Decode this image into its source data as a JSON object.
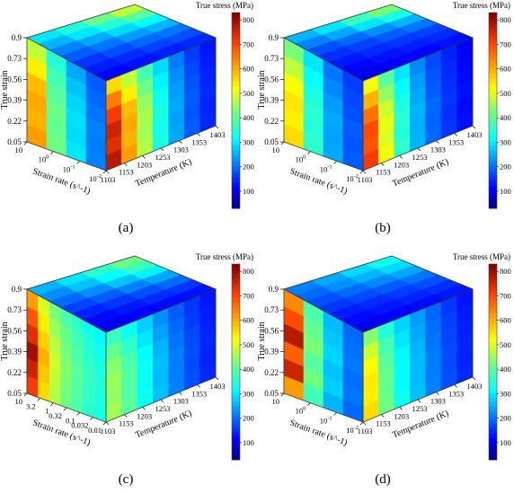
{
  "chart_data": [
    {
      "type": "heatmap",
      "panel_label": "(a)",
      "ylabel": "True strain",
      "y_ticks": [
        "0.05",
        "0.22",
        "0.39",
        "0.56",
        "0.73",
        "0.9"
      ],
      "xlabel": "Strain rate (s^-1)",
      "x_ticks": [
        {
          "base": "10",
          "exp": ""
        },
        {
          "base": "10",
          "exp": "0"
        },
        {
          "base": "10",
          "exp": "-1"
        },
        {
          "base": "10",
          "exp": "-2"
        }
      ],
      "tlabel": "Temperature (K)",
      "t_ticks": [
        "1103",
        "1153",
        "1203",
        "1253",
        "1303",
        "1353",
        "1403"
      ],
      "colorbar_label": "True stress (MPa)",
      "colorbar_ticks": [
        100,
        200,
        300,
        400,
        500,
        600,
        700,
        800
      ],
      "colorbar_range": [
        30,
        830
      ],
      "front_face_stress": [
        [
          780,
          620,
          470,
          340,
          250,
          190,
          150
        ],
        [
          740,
          600,
          460,
          335,
          245,
          185,
          145
        ],
        [
          760,
          610,
          465,
          340,
          250,
          190,
          150
        ],
        [
          720,
          590,
          450,
          330,
          240,
          185,
          145
        ],
        [
          650,
          540,
          420,
          310,
          230,
          175,
          140
        ],
        [
          560,
          480,
          380,
          290,
          215,
          165,
          135
        ]
      ],
      "left_face_stress": [
        [
          620,
          420,
          300,
          220
        ],
        [
          600,
          410,
          290,
          215
        ],
        [
          610,
          415,
          295,
          220
        ],
        [
          590,
          400,
          285,
          210
        ],
        [
          540,
          380,
          270,
          200
        ],
        [
          480,
          350,
          250,
          190
        ]
      ],
      "top_face_stress": [
        [
          480,
          400,
          320,
          260,
          210,
          180,
          150
        ],
        [
          420,
          350,
          290,
          240,
          200,
          170,
          140
        ],
        [
          350,
          300,
          250,
          210,
          180,
          150,
          130
        ],
        [
          300,
          260,
          220,
          190,
          160,
          140,
          120
        ]
      ]
    },
    {
      "type": "heatmap",
      "panel_label": "(b)",
      "ylabel": "True strain",
      "y_ticks": [
        "0.05",
        "0.22",
        "0.39",
        "0.56",
        "0.73",
        "0.9"
      ],
      "xlabel": "Strain rate (s^-1)",
      "x_ticks": [
        {
          "base": "10",
          "exp": ""
        },
        {
          "base": "10",
          "exp": "0"
        },
        {
          "base": "10",
          "exp": "-1"
        },
        {
          "base": "10",
          "exp": "-2"
        }
      ],
      "tlabel": "Temperature (K)",
      "t_ticks": [
        "1103",
        "1153",
        "1203",
        "1253",
        "1303",
        "1353",
        "1403"
      ],
      "colorbar_label": "True stress (MPa)",
      "colorbar_ticks": [
        100,
        200,
        300,
        400,
        500,
        600,
        700,
        800
      ],
      "colorbar_range": [
        30,
        830
      ],
      "front_face_stress": [
        [
          720,
          520,
          360,
          260,
          200,
          160,
          130
        ],
        [
          690,
          500,
          350,
          255,
          195,
          155,
          125
        ],
        [
          700,
          510,
          355,
          260,
          200,
          160,
          130
        ],
        [
          660,
          490,
          340,
          250,
          190,
          155,
          125
        ],
        [
          600,
          450,
          320,
          240,
          185,
          150,
          120
        ],
        [
          520,
          400,
          300,
          225,
          175,
          145,
          115
        ]
      ],
      "left_face_stress": [
        [
          560,
          360,
          250,
          190
        ],
        [
          540,
          350,
          245,
          185
        ],
        [
          550,
          355,
          250,
          190
        ],
        [
          520,
          340,
          240,
          180
        ],
        [
          480,
          320,
          225,
          175
        ],
        [
          430,
          300,
          210,
          165
        ]
      ],
      "top_face_stress": [
        [
          430,
          340,
          260,
          210,
          170,
          150,
          130
        ],
        [
          370,
          300,
          230,
          190,
          160,
          140,
          120
        ],
        [
          300,
          250,
          200,
          170,
          150,
          130,
          115
        ],
        [
          260,
          220,
          180,
          155,
          135,
          120,
          105
        ]
      ]
    },
    {
      "type": "heatmap",
      "panel_label": "(c)",
      "ylabel": "True strain",
      "y_ticks": [
        "0.05",
        "0.22",
        "0.39",
        "0.56",
        "0.73",
        "0.9"
      ],
      "xlabel": "Strain rate (s^-1)",
      "x_ticks": [
        {
          "base": "10",
          "exp": ""
        },
        {
          "base": "3.2",
          "exp": ""
        },
        {
          "base": "1",
          "exp": ""
        },
        {
          "base": "0.32",
          "exp": ""
        },
        {
          "base": "0.1",
          "exp": ""
        },
        {
          "base": "0.032",
          "exp": ""
        },
        {
          "base": "0.01",
          "exp": ""
        }
      ],
      "tlabel": "Temperature (K)",
      "t_ticks": [
        "1103",
        "1153",
        "1203",
        "1253",
        "1303",
        "1353",
        "1403"
      ],
      "colorbar_label": "True stress (MPa)",
      "colorbar_ticks": [
        100,
        200,
        300,
        400,
        500,
        600,
        700,
        800
      ],
      "colorbar_range": [
        30,
        830
      ],
      "front_face_stress": [
        [
          460,
          400,
          330,
          270,
          220,
          180,
          150
        ],
        [
          450,
          395,
          325,
          265,
          215,
          175,
          145
        ],
        [
          455,
          398,
          328,
          268,
          218,
          178,
          148
        ],
        [
          440,
          385,
          320,
          260,
          210,
          175,
          145
        ],
        [
          410,
          360,
          300,
          245,
          200,
          165,
          140
        ],
        [
          370,
          330,
          280,
          230,
          190,
          160,
          135
        ]
      ],
      "left_face_stress": [
        [
          720,
          560,
          470,
          420,
          390,
          360,
          340
        ],
        [
          760,
          580,
          480,
          430,
          395,
          365,
          345
        ],
        [
          800,
          600,
          490,
          435,
          400,
          370,
          350
        ],
        [
          740,
          570,
          475,
          425,
          390,
          360,
          340
        ],
        [
          690,
          540,
          455,
          410,
          380,
          350,
          330
        ],
        [
          620,
          500,
          430,
          390,
          360,
          335,
          315
        ]
      ],
      "top_face_stress": [
        [
          420,
          370,
          310,
          250,
          200,
          160,
          130
        ],
        [
          360,
          320,
          270,
          220,
          180,
          150,
          125
        ],
        [
          300,
          270,
          230,
          190,
          160,
          135,
          115
        ],
        [
          260,
          230,
          200,
          170,
          145,
          125,
          105
        ]
      ]
    },
    {
      "type": "heatmap",
      "panel_label": "(d)",
      "ylabel": "True strain",
      "y_ticks": [
        "0.05",
        "0.22",
        "0.39",
        "0.56",
        "0.73",
        "0.9"
      ],
      "xlabel": "Strain rate (s^-1)",
      "x_ticks": [
        {
          "base": "10",
          "exp": ""
        },
        {
          "base": "10",
          "exp": "0"
        },
        {
          "base": "10",
          "exp": "-1"
        },
        {
          "base": "10",
          "exp": "-2"
        }
      ],
      "tlabel": "Temperature (K)",
      "t_ticks": [
        "1103",
        "1153",
        "1203",
        "1253",
        "1303",
        "1353",
        "1403"
      ],
      "colorbar_label": "True stress (MPa)",
      "colorbar_ticks": [
        100,
        200,
        300,
        400,
        500,
        600,
        700,
        800
      ],
      "colorbar_range": [
        30,
        830
      ],
      "front_face_stress": [
        [
          560,
          420,
          330,
          270,
          220,
          180,
          150
        ],
        [
          540,
          410,
          320,
          265,
          215,
          175,
          145
        ],
        [
          545,
          412,
          322,
          266,
          216,
          176,
          146
        ],
        [
          530,
          400,
          315,
          260,
          210,
          172,
          142
        ],
        [
          490,
          380,
          300,
          250,
          205,
          168,
          138
        ],
        [
          440,
          350,
          285,
          240,
          198,
          162,
          132
        ]
      ],
      "left_face_stress": [
        [
          620,
          380,
          260,
          200
        ],
        [
          760,
          420,
          280,
          210
        ],
        [
          680,
          400,
          270,
          205
        ],
        [
          780,
          430,
          285,
          212
        ],
        [
          700,
          410,
          275,
          206
        ],
        [
          640,
          390,
          265,
          200
        ]
      ],
      "top_face_stress": [
        [
          330,
          290,
          250,
          210,
          180,
          155,
          135
        ],
        [
          290,
          260,
          225,
          190,
          165,
          145,
          125
        ],
        [
          250,
          230,
          200,
          175,
          150,
          135,
          115
        ],
        [
          220,
          200,
          180,
          160,
          140,
          125,
          105
        ]
      ]
    }
  ]
}
